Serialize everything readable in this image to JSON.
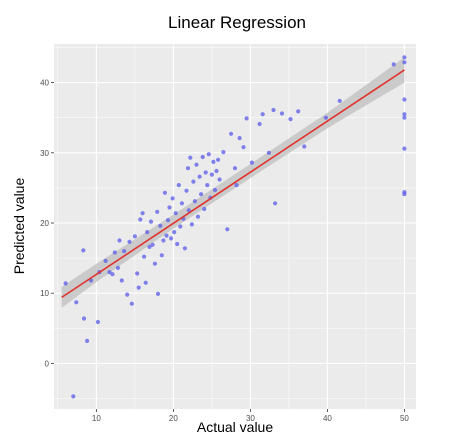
{
  "chart_data": {
    "type": "scatter",
    "title": "Linear Regression",
    "xlabel": "Actual value",
    "ylabel": "Predicted value",
    "xlim": [
      4.5,
      51.5
    ],
    "ylim": [
      -6.5,
      45.5
    ],
    "x_ticks": [
      10,
      20,
      30,
      40,
      50
    ],
    "y_ticks": [
      0,
      10,
      20,
      30,
      40
    ],
    "grid": true,
    "colors": {
      "panel_background": "#ebebeb",
      "grid": "#ffffff",
      "points": "#5b5bea",
      "regression_line": "#e0332e",
      "confidence_band": "#c4c4c4"
    },
    "regression": {
      "x": [
        5.5,
        50
      ],
      "y": [
        9.4,
        41.8
      ],
      "band_x": [
        5.5,
        10,
        20,
        30,
        40,
        50
      ],
      "band_lower": [
        7.9,
        11.6,
        19.2,
        26.4,
        33.5,
        40.0
      ],
      "band_upper": [
        10.9,
        14.2,
        21.2,
        28.4,
        35.7,
        43.6
      ]
    },
    "points": [
      {
        "x": 6.0,
        "y": 11.4
      },
      {
        "x": 7.0,
        "y": -4.7
      },
      {
        "x": 7.4,
        "y": 8.7
      },
      {
        "x": 8.3,
        "y": 16.1
      },
      {
        "x": 8.4,
        "y": 6.4
      },
      {
        "x": 8.8,
        "y": 3.2
      },
      {
        "x": 9.3,
        "y": 11.8
      },
      {
        "x": 10.2,
        "y": 5.9
      },
      {
        "x": 10.4,
        "y": 13.0
      },
      {
        "x": 11.2,
        "y": 14.6
      },
      {
        "x": 11.7,
        "y": 13.0
      },
      {
        "x": 12.1,
        "y": 12.7
      },
      {
        "x": 12.4,
        "y": 15.8
      },
      {
        "x": 12.8,
        "y": 13.6
      },
      {
        "x": 13.0,
        "y": 17.5
      },
      {
        "x": 13.3,
        "y": 11.8
      },
      {
        "x": 13.6,
        "y": 16.0
      },
      {
        "x": 14.0,
        "y": 9.8
      },
      {
        "x": 14.3,
        "y": 17.3
      },
      {
        "x": 14.6,
        "y": 8.5
      },
      {
        "x": 15.0,
        "y": 18.1
      },
      {
        "x": 15.3,
        "y": 12.8
      },
      {
        "x": 15.5,
        "y": 10.8
      },
      {
        "x": 15.7,
        "y": 20.5
      },
      {
        "x": 16.0,
        "y": 21.4
      },
      {
        "x": 16.2,
        "y": 15.2
      },
      {
        "x": 16.4,
        "y": 11.5
      },
      {
        "x": 16.6,
        "y": 18.7
      },
      {
        "x": 16.9,
        "y": 16.6
      },
      {
        "x": 17.1,
        "y": 20.2
      },
      {
        "x": 17.3,
        "y": 16.9
      },
      {
        "x": 17.6,
        "y": 14.2
      },
      {
        "x": 17.9,
        "y": 21.6
      },
      {
        "x": 18.0,
        "y": 9.9
      },
      {
        "x": 18.3,
        "y": 19.6
      },
      {
        "x": 18.5,
        "y": 15.4
      },
      {
        "x": 18.7,
        "y": 17.5
      },
      {
        "x": 18.9,
        "y": 24.3
      },
      {
        "x": 19.1,
        "y": 18.2
      },
      {
        "x": 19.3,
        "y": 20.4
      },
      {
        "x": 19.5,
        "y": 22.2
      },
      {
        "x": 19.7,
        "y": 17.8
      },
      {
        "x": 19.9,
        "y": 23.5
      },
      {
        "x": 20.1,
        "y": 18.7
      },
      {
        "x": 20.3,
        "y": 21.4
      },
      {
        "x": 20.5,
        "y": 17.0
      },
      {
        "x": 20.7,
        "y": 25.4
      },
      {
        "x": 20.9,
        "y": 19.5
      },
      {
        "x": 21.1,
        "y": 22.8
      },
      {
        "x": 21.3,
        "y": 20.6
      },
      {
        "x": 21.5,
        "y": 16.4
      },
      {
        "x": 21.7,
        "y": 24.6
      },
      {
        "x": 21.9,
        "y": 27.8
      },
      {
        "x": 22.0,
        "y": 21.8
      },
      {
        "x": 22.2,
        "y": 29.3
      },
      {
        "x": 22.4,
        "y": 19.8
      },
      {
        "x": 22.6,
        "y": 25.9
      },
      {
        "x": 22.8,
        "y": 23.1
      },
      {
        "x": 23.0,
        "y": 28.3
      },
      {
        "x": 23.2,
        "y": 20.9
      },
      {
        "x": 23.4,
        "y": 26.6
      },
      {
        "x": 23.6,
        "y": 24.1
      },
      {
        "x": 23.8,
        "y": 29.4
      },
      {
        "x": 24.0,
        "y": 22.0
      },
      {
        "x": 24.2,
        "y": 27.2
      },
      {
        "x": 24.4,
        "y": 25.4
      },
      {
        "x": 24.6,
        "y": 29.8
      },
      {
        "x": 24.8,
        "y": 23.6
      },
      {
        "x": 25.0,
        "y": 26.9
      },
      {
        "x": 25.2,
        "y": 28.7
      },
      {
        "x": 25.4,
        "y": 24.7
      },
      {
        "x": 25.6,
        "y": 27.4
      },
      {
        "x": 25.8,
        "y": 29.0
      },
      {
        "x": 26.0,
        "y": 26.2
      },
      {
        "x": 26.5,
        "y": 30.1
      },
      {
        "x": 27.0,
        "y": 19.1
      },
      {
        "x": 27.5,
        "y": 32.7
      },
      {
        "x": 28.0,
        "y": 27.8
      },
      {
        "x": 28.2,
        "y": 25.4
      },
      {
        "x": 28.6,
        "y": 32.1
      },
      {
        "x": 29.1,
        "y": 30.8
      },
      {
        "x": 29.5,
        "y": 34.9
      },
      {
        "x": 30.2,
        "y": 28.6
      },
      {
        "x": 31.2,
        "y": 34.1
      },
      {
        "x": 31.6,
        "y": 35.5
      },
      {
        "x": 32.4,
        "y": 30.0
      },
      {
        "x": 33.0,
        "y": 36.1
      },
      {
        "x": 33.2,
        "y": 22.8
      },
      {
        "x": 34.1,
        "y": 35.6
      },
      {
        "x": 35.2,
        "y": 34.8
      },
      {
        "x": 36.2,
        "y": 35.9
      },
      {
        "x": 37.0,
        "y": 30.9
      },
      {
        "x": 39.8,
        "y": 35.0
      },
      {
        "x": 41.6,
        "y": 37.4
      },
      {
        "x": 48.6,
        "y": 42.6
      },
      {
        "x": 50.0,
        "y": 43.6
      },
      {
        "x": 50.0,
        "y": 42.9
      },
      {
        "x": 50.0,
        "y": 37.6
      },
      {
        "x": 50.0,
        "y": 35.5
      },
      {
        "x": 50.0,
        "y": 35.0
      },
      {
        "x": 50.0,
        "y": 30.6
      },
      {
        "x": 50.0,
        "y": 24.4
      },
      {
        "x": 50.0,
        "y": 24.1
      }
    ]
  }
}
